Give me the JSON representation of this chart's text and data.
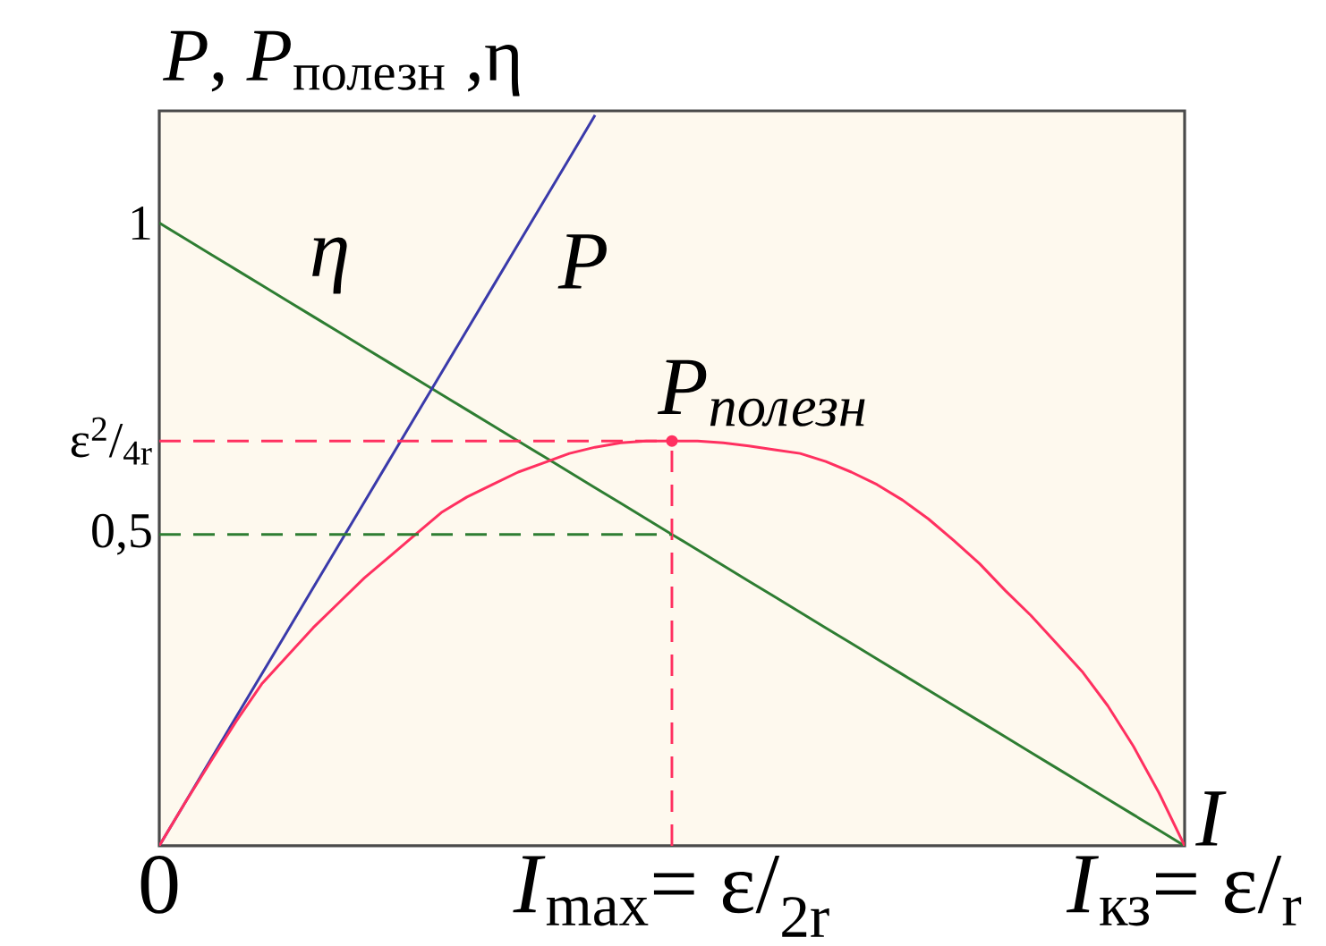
{
  "chart_data": {
    "type": "line",
    "xlabel": "I",
    "ylabel": "*P*, *P*$_{полезн}$ ,η",
    "categories": [
      "0",
      null,
      null,
      null,
      null,
      null,
      null,
      null,
      null,
      null,
      null,
      null,
      null,
      null,
      null,
      null,
      null,
      null,
      null,
      null,
      "*I*$_{max}$= ε/$_{2r}$",
      null,
      null,
      null,
      null,
      null,
      null,
      null,
      null,
      null,
      null,
      null,
      null,
      null,
      null,
      null,
      null,
      null,
      null,
      null,
      "*I*$_{кз}$= ε/$_{r}$"
    ],
    "ylim": [
      0,
      1.18
    ],
    "yticks": [
      {
        "value": 0.5,
        "label": "0,5"
      },
      {
        "value": 0.65,
        "label": "ε$^{2}$/$_{4r}$"
      },
      1
    ],
    "series": [
      {
        "name": "η",
        "color": "#2e7d32",
        "values": [
          1,
          0.975,
          0.95,
          0.925,
          0.9,
          0.875,
          0.85,
          0.825,
          0.8,
          0.775,
          0.75,
          0.725,
          0.7,
          0.675,
          0.65,
          0.625,
          0.6,
          0.575,
          0.55,
          0.525,
          0.5,
          0.475,
          0.45,
          0.425,
          0.4,
          0.375,
          0.35,
          0.325,
          0.3,
          0.275,
          0.25,
          0.225,
          0.2,
          0.175,
          0.15,
          0.125,
          0.1,
          0.075,
          0.05,
          0.025,
          0
        ]
      },
      {
        "name": "P",
        "color": "#3a3aaa",
        "values": [
          0,
          0.069,
          0.138,
          0.207,
          0.276,
          0.345,
          0.414,
          0.483,
          0.552,
          0.621,
          0.69,
          0.759,
          0.828,
          0.897,
          0.966,
          1.035,
          1.104,
          1.173,
          null,
          null,
          null,
          null,
          null,
          null,
          null,
          null,
          null,
          null,
          null,
          null,
          null,
          null,
          null,
          null,
          null,
          null,
          null,
          null,
          null,
          null,
          null
        ]
      },
      {
        "name": "P$_{полезн}$",
        "color": "#ff3060",
        "values": [
          0,
          0.069,
          0.135,
          0.2,
          0.26,
          0.305,
          0.35,
          0.39,
          0.43,
          0.465,
          0.5,
          0.535,
          0.56,
          0.58,
          0.6,
          0.615,
          0.63,
          0.64,
          0.647,
          0.65,
          0.65,
          0.65,
          0.647,
          0.642,
          0.636,
          0.63,
          0.617,
          0.6,
          0.58,
          0.555,
          0.525,
          0.49,
          0.453,
          0.41,
          0.37,
          0.325,
          0.28,
          0.225,
          0.16,
          0.085,
          0
        ]
      },
      {
        "color": "#ff3060",
        "line_style": "dashed",
        "values": [
          0.65,
          0.65,
          0.65,
          0.65,
          0.65,
          0.65,
          0.65,
          0.65,
          0.65,
          0.65,
          0.65,
          0.65,
          0.65,
          0.65,
          0.65,
          0.65,
          0.65,
          0.65,
          0.65,
          0.65,
          0.65,
          null,
          null,
          null,
          null,
          null,
          null,
          null,
          null,
          null,
          null,
          null,
          null,
          null,
          null,
          null,
          null,
          null,
          null,
          null,
          null
        ]
      },
      {
        "type": "lollipop",
        "color": "#ff3060",
        "line_style": "dashed",
        "marker": "circle",
        "values": [
          null,
          null,
          null,
          null,
          null,
          null,
          null,
          null,
          null,
          null,
          null,
          null,
          null,
          null,
          null,
          null,
          null,
          null,
          null,
          null,
          0.65,
          null,
          null,
          null,
          null,
          null,
          null,
          null,
          null,
          null,
          null,
          null,
          null,
          null,
          null,
          null,
          null,
          null,
          null,
          null,
          null
        ]
      },
      {
        "color": "#2e7d32",
        "line_style": "dashed",
        "values": [
          0.5,
          0.5,
          0.5,
          0.5,
          0.5,
          0.5,
          0.5,
          0.5,
          0.5,
          0.5,
          0.5,
          0.5,
          0.5,
          0.5,
          0.5,
          0.5,
          0.5,
          0.5,
          0.5,
          0.5,
          0.5,
          null,
          null,
          null,
          null,
          null,
          null,
          null,
          null,
          null,
          null,
          null,
          null,
          null,
          null,
          null,
          null,
          null,
          null,
          null,
          null
        ]
      }
    ]
  }
}
